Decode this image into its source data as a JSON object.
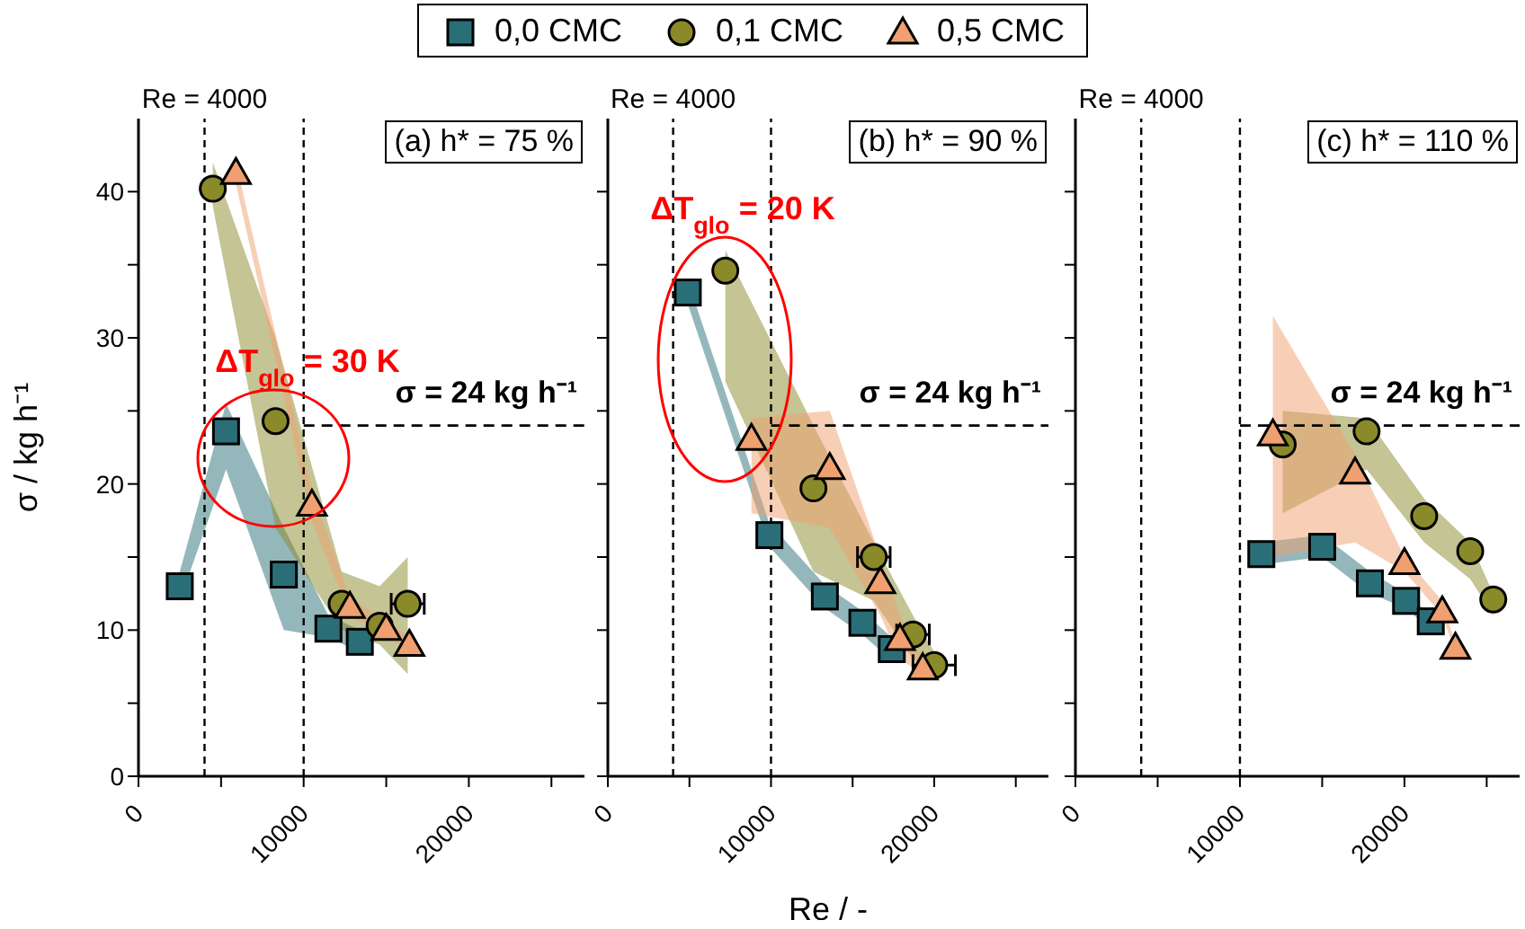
{
  "chart_data": [
    {
      "type": "scatter",
      "title": "(a) h* = 75 %",
      "ylabel": "σ / kg h⁻¹",
      "legend": "top",
      "grid": false,
      "xlim": [
        0,
        27000
      ],
      "ylim": [
        0,
        45
      ],
      "xticks": [
        0,
        {
          "value": 5000,
          "label": null
        },
        10000,
        {
          "value": 15000,
          "label": null
        },
        20000,
        {
          "value": 25000,
          "label": null
        }
      ],
      "yticks": [
        0,
        {
          "value": 5,
          "label": null
        },
        10,
        {
          "value": 15,
          "label": null
        },
        20,
        {
          "value": 25,
          "label": null
        },
        30,
        {
          "value": 35,
          "label": null
        },
        40
      ],
      "ref_lines": [
        {
          "axis": "x",
          "value": 4000,
          "label": "Re = 4000",
          "line_style": "dashed"
        },
        {
          "axis": "x",
          "value": 10000,
          "line_style": "dashed"
        },
        {
          "axis": "y",
          "value": 24,
          "label": "σ = 24 kg h⁻¹",
          "line_style": "dashed"
        }
      ],
      "annotations": [
        "ΔT$_{glo}$ = 30 K"
      ],
      "series": [
        {
          "name": "0,0 CMC",
          "color": "#2a6f78",
          "marker": "square",
          "x": [
            2500,
            5300,
            8800,
            11500,
            13400
          ],
          "values": [
            13,
            23.6,
            13.8,
            10.1,
            9.2
          ],
          "lower": [
            12,
            21,
            10,
            9.5,
            8.5
          ],
          "upper": [
            14,
            25.5,
            17,
            11,
            10
          ]
        },
        {
          "name": "0,1 CMC",
          "color": "#8a8a2a",
          "marker": "circle",
          "x": [
            4500,
            8300,
            12300,
            14600,
            16300
          ],
          "values": [
            40.2,
            24.3,
            11.8,
            10.3,
            11.8
          ],
          "lower": [
            39,
            17,
            10,
            9,
            7
          ],
          "upper": [
            42,
            30,
            14,
            13,
            15
          ],
          "xerrors": [
            null,
            null,
            null,
            null,
            1000
          ]
        },
        {
          "name": "0,5 CMC",
          "color": "#f0a070",
          "marker": "triangle",
          "x": [
            5900,
            10500,
            12800,
            15000,
            16400
          ],
          "values": [
            41.3,
            18.6,
            11.6,
            10.1,
            9
          ],
          "lower": [
            40.5,
            17.5,
            11,
            9.6,
            8.5
          ],
          "upper": [
            42,
            19.5,
            12.2,
            10.6,
            9.5
          ]
        }
      ]
    },
    {
      "type": "scatter",
      "title": "(b) h* = 90 %",
      "xlabel": "Re /  -",
      "legend": false,
      "grid": false,
      "tick_labels": "x",
      "xlim": [
        0,
        27000
      ],
      "ylim": [
        0,
        45
      ],
      "xticks": [
        0,
        {
          "value": 5000,
          "label": null
        },
        10000,
        {
          "value": 15000,
          "label": null
        },
        20000,
        {
          "value": 25000,
          "label": null
        }
      ],
      "yticks": [
        0,
        {
          "value": 5,
          "label": null
        },
        10,
        {
          "value": 15,
          "label": null
        },
        20,
        {
          "value": 25,
          "label": null
        },
        30,
        {
          "value": 35,
          "label": null
        },
        40
      ],
      "ref_lines": [
        {
          "axis": "x",
          "value": 4000,
          "label": "Re = 4000",
          "line_style": "dashed"
        },
        {
          "axis": "x",
          "value": 10000,
          "line_style": "dashed"
        },
        {
          "axis": "y",
          "value": 24,
          "label": "σ = 24 kg h⁻¹",
          "line_style": "dashed"
        }
      ],
      "annotations": [
        "ΔT$_{glo}$ = 20 K"
      ],
      "series": [
        {
          "color": "#2a6f78",
          "marker": "square",
          "x": [
            4900,
            9900,
            13300,
            15600,
            17400
          ],
          "values": [
            33.1,
            16.5,
            12.3,
            10.5,
            8.7
          ],
          "lower": [
            32.3,
            15.7,
            11.5,
            9.7,
            7.9
          ],
          "upper": [
            33.9,
            17.3,
            13.1,
            11.3,
            9.5
          ]
        },
        {
          "color": "#8a8a2a",
          "marker": "circle",
          "x": [
            7200,
            12600,
            16300,
            18700,
            20000
          ],
          "values": [
            34.6,
            19.7,
            15,
            9.7,
            7.6
          ],
          "lower": [
            27,
            14,
            12,
            8,
            7
          ],
          "upper": [
            36,
            24,
            16,
            11,
            8.5
          ],
          "xerrors": [
            null,
            null,
            1000,
            1000,
            1300
          ]
        },
        {
          "color": "#f0a070",
          "marker": "triangle",
          "x": [
            8800,
            13600,
            16700,
            17900,
            19300
          ],
          "values": [
            23.1,
            21.1,
            13.3,
            9.4,
            7.4
          ],
          "lower": [
            18,
            17,
            11,
            8,
            7
          ],
          "upper": [
            24.5,
            25,
            15,
            11,
            8
          ]
        }
      ]
    },
    {
      "type": "scatter",
      "title": "(c) h* = 110 %",
      "legend": false,
      "grid": false,
      "tick_labels": "x",
      "xlim": [
        0,
        27000
      ],
      "ylim": [
        0,
        45
      ],
      "xticks": [
        0,
        {
          "value": 5000,
          "label": null
        },
        10000,
        {
          "value": 15000,
          "label": null
        },
        20000,
        {
          "value": 25000,
          "label": null
        }
      ],
      "yticks": [
        0,
        {
          "value": 5,
          "label": null
        },
        10,
        {
          "value": 15,
          "label": null
        },
        20,
        {
          "value": 25,
          "label": null
        },
        30,
        {
          "value": 35,
          "label": null
        },
        40
      ],
      "ref_lines": [
        {
          "axis": "x",
          "value": 4000,
          "label": "Re = 4000",
          "line_style": "dashed"
        },
        {
          "axis": "x",
          "value": 10000,
          "line_style": "dashed"
        },
        {
          "axis": "y",
          "value": 24,
          "label": "σ = 24 kg h⁻¹",
          "line_style": "dashed"
        }
      ],
      "series": [
        {
          "color": "#2a6f78",
          "marker": "square",
          "x": [
            11300,
            15000,
            17900,
            20100,
            21600
          ],
          "values": [
            15.2,
            15.7,
            13.2,
            12,
            10.6
          ],
          "lower": [
            14.5,
            15,
            12.5,
            11.5,
            10
          ],
          "upper": [
            16,
            16.5,
            14,
            12.5,
            11
          ]
        },
        {
          "color": "#8a8a2a",
          "marker": "circle",
          "x": [
            12600,
            17700,
            21200,
            24000,
            25400
          ],
          "values": [
            22.7,
            23.6,
            17.8,
            15.4,
            12.1
          ],
          "lower": [
            18,
            21,
            16,
            13.5,
            11
          ],
          "upper": [
            25,
            24.5,
            19,
            16,
            12.5
          ]
        },
        {
          "color": "#f0a070",
          "marker": "triangle",
          "x": [
            12000,
            17000,
            20000,
            22300,
            23100
          ],
          "values": [
            23.4,
            20.8,
            14.6,
            11.3,
            8.8
          ],
          "lower": [
            15,
            16,
            14,
            11,
            8.5
          ],
          "upper": [
            31.5,
            22,
            15,
            12,
            9
          ]
        }
      ]
    }
  ]
}
